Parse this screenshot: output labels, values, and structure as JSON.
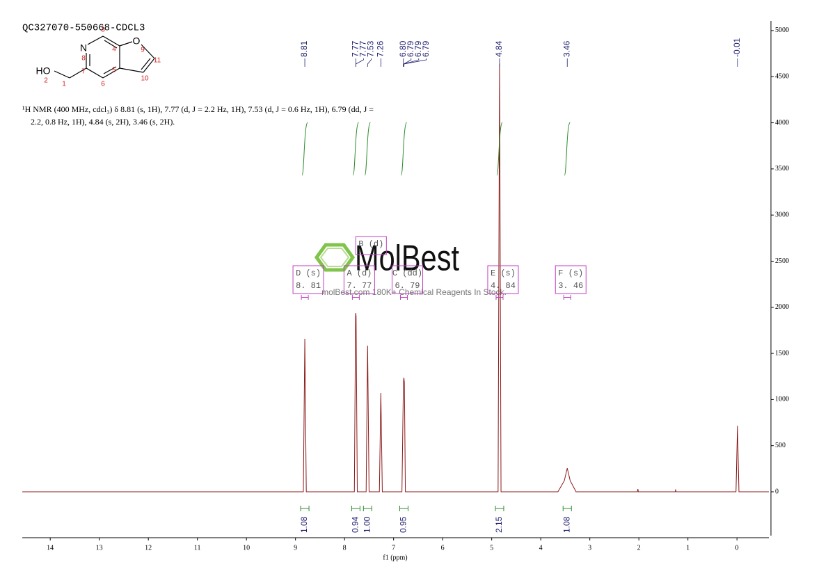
{
  "chart_data": {
    "type": "line",
    "title": "QC327070-550668-CDCL3",
    "description_lines": [
      "¹H NMR (400 MHz, cdcl₃) δ 8.81 (s, 1H), 7.77 (d, J = 2.2 Hz, 1H), 7.53 (d, J = 0.6 Hz, 1H), 6.79 (dd, J =",
      "2.2, 0.8 Hz, 1H), 4.84 (s, 2H), 3.46 (s, 2H)."
    ],
    "structure_labels": [
      "N",
      "O",
      "HO",
      "3",
      "4",
      "9",
      "11",
      "8",
      "7",
      "5",
      "10",
      "2",
      "1",
      "6"
    ],
    "watermark": "MolBest",
    "watermark_subtitle": "molBest.com 180K+ Chemical Reagents In Stock.",
    "x_label": "f1 (ppm)",
    "xlim": [
      14.57,
      -0.65
    ],
    "xticks": [
      14,
      13,
      12,
      11,
      10,
      9,
      8,
      7,
      6,
      5,
      4,
      3,
      2,
      1,
      0
    ],
    "ylim": [
      -475,
      5105
    ],
    "yticks": [
      0,
      500,
      1000,
      1500,
      2000,
      2500,
      3000,
      3500,
      4000,
      4500,
      5000
    ],
    "series": [
      {
        "color": "#8b1a1a",
        "x": [
          14.57,
          8.84,
          8.81,
          8.78,
          7.8,
          7.775,
          7.77,
          7.765,
          7.74,
          7.56,
          7.53,
          7.5,
          7.29,
          7.26,
          7.23,
          6.83,
          6.8,
          6.79,
          6.78,
          6.76,
          4.87,
          4.84,
          4.81,
          3.65,
          3.52,
          3.46,
          3.4,
          3.28,
          2.03,
          2.02,
          2.01,
          1.26,
          1.25,
          1.24,
          0.02,
          -0.01,
          -0.04,
          -0.65
        ],
        "values": [
          0,
          0,
          1659,
          0,
          0,
          1900,
          1938,
          1900,
          0,
          0,
          1584,
          0,
          0,
          1071,
          0,
          0,
          1180,
          1237,
          1180,
          0,
          0,
          4638,
          0,
          0,
          120,
          256,
          120,
          0,
          0,
          30,
          0,
          0,
          20,
          0,
          0,
          716,
          0,
          0
        ]
      }
    ],
    "peak_labels": [
      8.81,
      7.77,
      7.77,
      7.53,
      7.26,
      {
        "value": 6.8,
        "label": "6.80"
      },
      6.79,
      6.79,
      6.79,
      4.84,
      3.46,
      -0.01
    ],
    "integrals": {
      "x": [
        8.81,
        7.77,
        7.53,
        6.79,
        4.84,
        3.46
      ],
      "values": [
        1.08,
        0.94,
        1.0,
        0.95,
        2.15,
        1.08
      ],
      "value_labels": [
        "1.08",
        "0.94",
        "1.00",
        "0.95",
        "2.15",
        "1.08"
      ],
      "color": "#2e8b2e"
    },
    "multiplets": [
      {
        "label": "D (s)",
        "shift": "8. 81",
        "x": 8.81
      },
      {
        "label": "A (d)",
        "shift": "7. 77",
        "x": 7.77
      },
      {
        "label": "B (d)",
        "x": 7.53
      },
      {
        "label": "C (dd)",
        "shift": "6. 79",
        "x": 6.79
      },
      {
        "label": "E (s)",
        "shift": "4. 84",
        "x": 4.84
      },
      {
        "label": "F (s)",
        "shift": "3. 46",
        "x": 3.46
      }
    ],
    "multiplet_color": "#c040c0"
  }
}
